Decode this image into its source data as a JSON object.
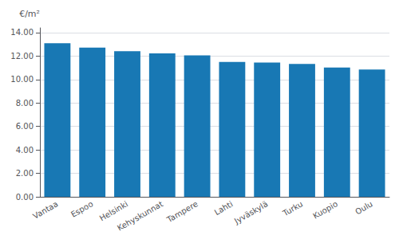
{
  "chart_data": {
    "type": "bar",
    "ylabel": "€/m²",
    "categories": [
      "Vantaa",
      "Espoo",
      "Helsinki",
      "Kehyskunnat",
      "Tampere",
      "Lahti",
      "Jyväskylä",
      "Turku",
      "Kuopio",
      "Oulu"
    ],
    "values": [
      13.1,
      12.72,
      12.42,
      12.22,
      12.05,
      11.5,
      11.45,
      11.32,
      11.02,
      10.85
    ],
    "color": "#1878b4",
    "ylim": [
      0,
      14.4
    ],
    "yticks": [
      {
        "value": 0,
        "label": "0.00"
      },
      {
        "value": 2,
        "label": "2.00"
      },
      {
        "value": 4,
        "label": "4.00"
      },
      {
        "value": 6,
        "label": "6.00"
      },
      {
        "value": 8,
        "label": "8.00"
      },
      {
        "value": 10,
        "label": "10.00"
      },
      {
        "value": 12,
        "label": "12.00"
      },
      {
        "value": 14,
        "label": "14.00"
      }
    ],
    "grid": true
  }
}
